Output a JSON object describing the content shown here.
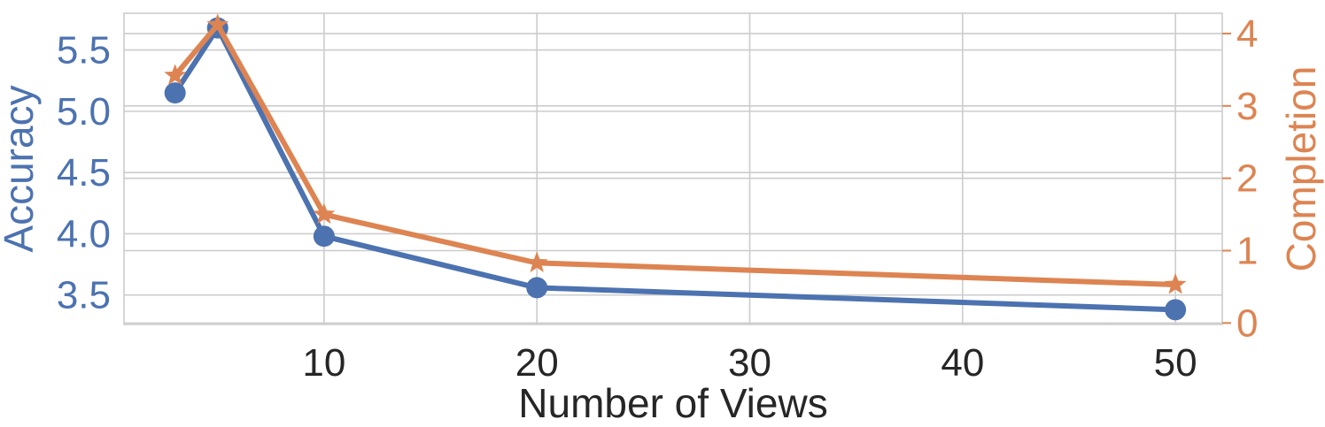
{
  "chart_data": {
    "type": "line",
    "title": "",
    "xlabel": "Number of Views",
    "ylabel_left": "Accuracy",
    "ylabel_right": "Completion",
    "x_ticks": [
      10,
      20,
      30,
      40,
      50
    ],
    "x_ticks_labels": [
      "10",
      "20",
      "30",
      "40",
      "50"
    ],
    "xlim": [
      0.6,
      52.2
    ],
    "y_left_ticks": [
      3.5,
      4.0,
      4.5,
      5.0,
      5.5
    ],
    "y_left_tick_labels": [
      "3.5",
      "4.0",
      "4.5",
      "5.0",
      "5.5"
    ],
    "ylim_left": [
      3.26,
      5.8
    ],
    "y_right_ticks": [
      0,
      1,
      2,
      3,
      4
    ],
    "y_right_tick_labels": [
      "0",
      "1",
      "2",
      "3",
      "4"
    ],
    "ylim_right": [
      -0.02,
      4.28
    ],
    "grid": true,
    "x": [
      3,
      5,
      10,
      20,
      50
    ],
    "series": [
      {
        "axis": "left",
        "marker": "circle",
        "color": "#4c72b0",
        "values": [
          5.15,
          5.68,
          3.98,
          3.56,
          3.38
        ]
      },
      {
        "axis": "right",
        "marker": "star",
        "color": "#dd8452",
        "values": [
          3.42,
          4.12,
          1.5,
          0.83,
          0.53
        ]
      }
    ]
  }
}
